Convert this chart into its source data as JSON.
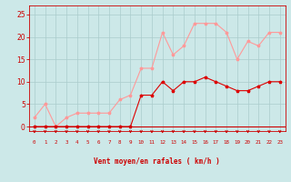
{
  "hours": [
    0,
    1,
    2,
    3,
    4,
    5,
    6,
    7,
    8,
    9,
    10,
    11,
    12,
    13,
    14,
    15,
    16,
    17,
    18,
    19,
    20,
    21,
    22,
    23
  ],
  "wind_avg": [
    0,
    0,
    0,
    0,
    0,
    0,
    0,
    0,
    0,
    0,
    7,
    7,
    10,
    8,
    10,
    10,
    11,
    10,
    9,
    8,
    8,
    9,
    10,
    10
  ],
  "wind_gust": [
    2,
    5,
    0,
    2,
    3,
    3,
    3,
    3,
    6,
    7,
    13,
    13,
    21,
    16,
    18,
    23,
    23,
    23,
    21,
    15,
    19,
    18,
    21,
    21
  ],
  "bg_color": "#cce8e8",
  "grid_color": "#aacccc",
  "line_avg_color": "#dd0000",
  "line_gust_color": "#ff9999",
  "axis_color": "#cc0000",
  "xlabel": "Vent moyen/en rafales ( km/h )",
  "ylim_min": -1,
  "ylim_max": 27,
  "yticks": [
    0,
    5,
    10,
    15,
    20,
    25
  ],
  "marker_size": 2.5,
  "linewidth": 0.8
}
